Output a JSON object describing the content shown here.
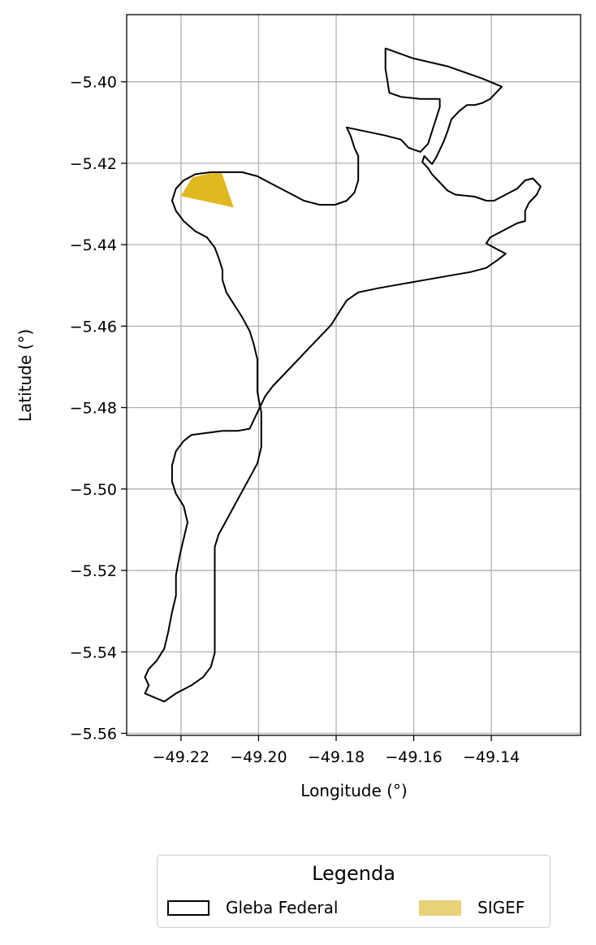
{
  "chart_data": {
    "type": "map",
    "xlabel": "Longitude (°)",
    "ylabel": "Latitude (°)",
    "xlim": [
      -49.234,
      -49.117
    ],
    "ylim": [
      -5.5605,
      -5.3835
    ],
    "xticks": [
      -49.22,
      -49.2,
      -49.18,
      -49.16,
      -49.14
    ],
    "xtick_labels": [
      "−49.22",
      "−49.20",
      "−49.18",
      "−49.16",
      "−49.14"
    ],
    "yticks": [
      -5.4,
      -5.42,
      -5.44,
      -5.46,
      -5.48,
      -5.5,
      -5.52,
      -5.54,
      -5.56
    ],
    "ytick_labels": [
      "−5.40",
      "−5.42",
      "−5.44",
      "−5.46",
      "−5.48",
      "−5.50",
      "−5.52",
      "−5.54",
      "−5.56"
    ],
    "grid": true,
    "layers": [
      {
        "name": "Gleba Federal",
        "style": "outline",
        "edge_color": "#000000",
        "coordinates": [
          [
            -49.1673,
            -5.3918
          ],
          [
            -49.1603,
            -5.3942
          ],
          [
            -49.1513,
            -5.3962
          ],
          [
            -49.1423,
            -5.3992
          ],
          [
            -49.1373,
            -5.4012
          ],
          [
            -49.1393,
            -5.4032
          ],
          [
            -49.1403,
            -5.4042
          ],
          [
            -49.1423,
            -5.4052
          ],
          [
            -49.1443,
            -5.4057
          ],
          [
            -49.1463,
            -5.4057
          ],
          [
            -49.1483,
            -5.4072
          ],
          [
            -49.1503,
            -5.4092
          ],
          [
            -49.1513,
            -5.4122
          ],
          [
            -49.1523,
            -5.4147
          ],
          [
            -49.1533,
            -5.4167
          ],
          [
            -49.1543,
            -5.4187
          ],
          [
            -49.1553,
            -5.4202
          ],
          [
            -49.1573,
            -5.4182
          ],
          [
            -49.1578,
            -5.4197
          ],
          [
            -49.1563,
            -5.4212
          ],
          [
            -49.1553,
            -5.4227
          ],
          [
            -49.1533,
            -5.4247
          ],
          [
            -49.1513,
            -5.4267
          ],
          [
            -49.1493,
            -5.4277
          ],
          [
            -49.1443,
            -5.4282
          ],
          [
            -49.1413,
            -5.4292
          ],
          [
            -49.1393,
            -5.4292
          ],
          [
            -49.1363,
            -5.4277
          ],
          [
            -49.1333,
            -5.4262
          ],
          [
            -49.1313,
            -5.4242
          ],
          [
            -49.1293,
            -5.4237
          ],
          [
            -49.1273,
            -5.4257
          ],
          [
            -49.1283,
            -5.4277
          ],
          [
            -49.1303,
            -5.4297
          ],
          [
            -49.1313,
            -5.4317
          ],
          [
            -49.1313,
            -5.4342
          ],
          [
            -49.1333,
            -5.4347
          ],
          [
            -49.1353,
            -5.4357
          ],
          [
            -49.1383,
            -5.4372
          ],
          [
            -49.1403,
            -5.4382
          ],
          [
            -49.1413,
            -5.4397
          ],
          [
            -49.1383,
            -5.4412
          ],
          [
            -49.1363,
            -5.4422
          ],
          [
            -49.1383,
            -5.4437
          ],
          [
            -49.1413,
            -5.4457
          ],
          [
            -49.1453,
            -5.4467
          ],
          [
            -49.1513,
            -5.4477
          ],
          [
            -49.1573,
            -5.4487
          ],
          [
            -49.1633,
            -5.4497
          ],
          [
            -49.1693,
            -5.4507
          ],
          [
            -49.1743,
            -5.4517
          ],
          [
            -49.1773,
            -5.4537
          ],
          [
            -49.1793,
            -5.4567
          ],
          [
            -49.1813,
            -5.4597
          ],
          [
            -49.1843,
            -5.4627
          ],
          [
            -49.1873,
            -5.4657
          ],
          [
            -49.1903,
            -5.4687
          ],
          [
            -49.1933,
            -5.4717
          ],
          [
            -49.1963,
            -5.4747
          ],
          [
            -49.1983,
            -5.4772
          ],
          [
            -49.1993,
            -5.4792
          ],
          [
            -49.2003,
            -5.4812
          ],
          [
            -49.2013,
            -5.4832
          ],
          [
            -49.2023,
            -5.4852
          ],
          [
            -49.2053,
            -5.4857
          ],
          [
            -49.2093,
            -5.4857
          ],
          [
            -49.2133,
            -5.4862
          ],
          [
            -49.2173,
            -5.4867
          ],
          [
            -49.2193,
            -5.4882
          ],
          [
            -49.2213,
            -5.4907
          ],
          [
            -49.2223,
            -5.4942
          ],
          [
            -49.2223,
            -5.4982
          ],
          [
            -49.2213,
            -5.5012
          ],
          [
            -49.2193,
            -5.5042
          ],
          [
            -49.2183,
            -5.5082
          ],
          [
            -49.2193,
            -5.5122
          ],
          [
            -49.2203,
            -5.5162
          ],
          [
            -49.2213,
            -5.5212
          ],
          [
            -49.2213,
            -5.5262
          ],
          [
            -49.2223,
            -5.5302
          ],
          [
            -49.2233,
            -5.5352
          ],
          [
            -49.2243,
            -5.5392
          ],
          [
            -49.2263,
            -5.5422
          ],
          [
            -49.2283,
            -5.5442
          ],
          [
            -49.2293,
            -5.5462
          ],
          [
            -49.2283,
            -5.5482
          ],
          [
            -49.2293,
            -5.5502
          ],
          [
            -49.2243,
            -5.5522
          ],
          [
            -49.2213,
            -5.5502
          ],
          [
            -49.2173,
            -5.5482
          ],
          [
            -49.2143,
            -5.5462
          ],
          [
            -49.2123,
            -5.5437
          ],
          [
            -49.2113,
            -5.5402
          ],
          [
            -49.2113,
            -5.5352
          ],
          [
            -49.2113,
            -5.5302
          ],
          [
            -49.2113,
            -5.5252
          ],
          [
            -49.2113,
            -5.5212
          ],
          [
            -49.2113,
            -5.5172
          ],
          [
            -49.2113,
            -5.5142
          ],
          [
            -49.2103,
            -5.5112
          ],
          [
            -49.2083,
            -5.5077
          ],
          [
            -49.2063,
            -5.5042
          ],
          [
            -49.2043,
            -5.5007
          ],
          [
            -49.2023,
            -5.4972
          ],
          [
            -49.2003,
            -5.4937
          ],
          [
            -49.1993,
            -5.4897
          ],
          [
            -49.1993,
            -5.4857
          ],
          [
            -49.1993,
            -5.4812
          ],
          [
            -49.2003,
            -5.4762
          ],
          [
            -49.2003,
            -5.4722
          ],
          [
            -49.2003,
            -5.4682
          ],
          [
            -49.2013,
            -5.4642
          ],
          [
            -49.2023,
            -5.4612
          ],
          [
            -49.2043,
            -5.4577
          ],
          [
            -49.2063,
            -5.4547
          ],
          [
            -49.2083,
            -5.4517
          ],
          [
            -49.2093,
            -5.4487
          ],
          [
            -49.2093,
            -5.4462
          ],
          [
            -49.2103,
            -5.4432
          ],
          [
            -49.2113,
            -5.4407
          ],
          [
            -49.2133,
            -5.4382
          ],
          [
            -49.2163,
            -5.4367
          ],
          [
            -49.2193,
            -5.4342
          ],
          [
            -49.2213,
            -5.4317
          ],
          [
            -49.2223,
            -5.4292
          ],
          [
            -49.2213,
            -5.4262
          ],
          [
            -49.2193,
            -5.4242
          ],
          [
            -49.2163,
            -5.4227
          ],
          [
            -49.2123,
            -5.4222
          ],
          [
            -49.2083,
            -5.4222
          ],
          [
            -49.2043,
            -5.4222
          ],
          [
            -49.2003,
            -5.4232
          ],
          [
            -49.1963,
            -5.4252
          ],
          [
            -49.1923,
            -5.4272
          ],
          [
            -49.1883,
            -5.4292
          ],
          [
            -49.1843,
            -5.4302
          ],
          [
            -49.1803,
            -5.4302
          ],
          [
            -49.1773,
            -5.4292
          ],
          [
            -49.1753,
            -5.4272
          ],
          [
            -49.1743,
            -5.4242
          ],
          [
            -49.1743,
            -5.4212
          ],
          [
            -49.1743,
            -5.4182
          ],
          [
            -49.1753,
            -5.4162
          ],
          [
            -49.1763,
            -5.4132
          ],
          [
            -49.1773,
            -5.4112
          ],
          [
            -49.1723,
            -5.4122
          ],
          [
            -49.1673,
            -5.4132
          ],
          [
            -49.1633,
            -5.4142
          ],
          [
            -49.1613,
            -5.4162
          ],
          [
            -49.1583,
            -5.4172
          ],
          [
            -49.1563,
            -5.4152
          ],
          [
            -49.1553,
            -5.4122
          ],
          [
            -49.1543,
            -5.4092
          ],
          [
            -49.1533,
            -5.4062
          ],
          [
            -49.1533,
            -5.4042
          ],
          [
            -49.1583,
            -5.4042
          ],
          [
            -49.1633,
            -5.4037
          ],
          [
            -49.1663,
            -5.4027
          ],
          [
            -49.1673,
            -5.3968
          ]
        ]
      },
      {
        "name": "SIGEF",
        "style": "filled",
        "fill_color": "#e0b820",
        "coordinates": [
          [
            -49.22,
            -5.428
          ],
          [
            -49.217,
            -5.4235
          ],
          [
            -49.2125,
            -5.4225
          ],
          [
            -49.2095,
            -5.4225
          ],
          [
            -49.2065,
            -5.4308
          ]
        ]
      }
    ],
    "legend": {
      "title": "Legenda",
      "placement": "bottom-center",
      "entries": [
        {
          "label": "Gleba Federal",
          "style": "outline",
          "edge_color": "#000000"
        },
        {
          "label": "SIGEF",
          "style": "filled",
          "fill_color": "#e8d176"
        }
      ]
    }
  }
}
